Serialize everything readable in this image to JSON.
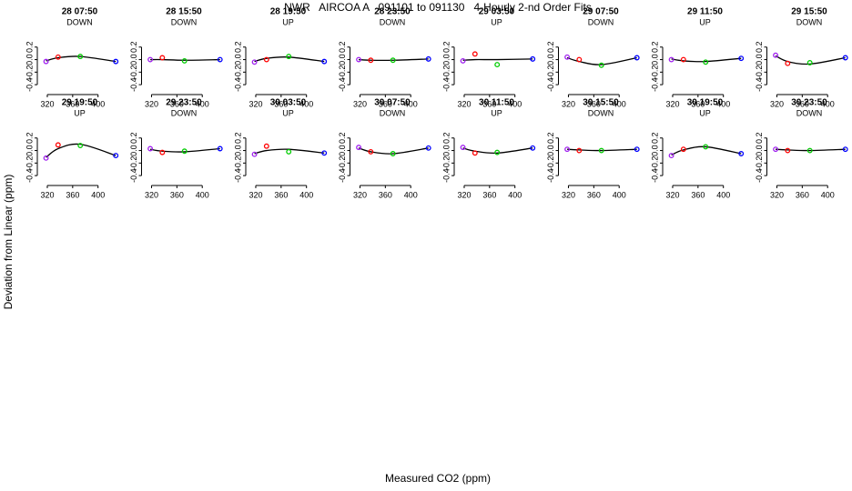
{
  "title": "NWR   AIRCOA A   091101 to 091130   4-Hourly 2-nd Order Fits",
  "xlabel": "Measured CO2 (ppm)",
  "ylabel": "Deviation from Linear (ppm)",
  "chart_data": [
    {
      "type": "scatter",
      "title": "28 07:50",
      "subtitle": "DOWN",
      "xlim": [
        310,
        432
      ],
      "ylim": [
        -0.5,
        0.4
      ],
      "xticks": [
        320,
        360,
        400
      ],
      "yticks": [
        -0.4,
        -0.2,
        {
          "value": 0,
          "label": "0.0"
        },
        0.2
      ],
      "points": {
        "x": [
          318,
          337,
          372,
          428
        ],
        "values": [
          -0.03,
          0.04,
          0.05,
          -0.03
        ],
        "colors": [
          "#a020f0",
          "#ff0000",
          "#00cc00",
          "#0000ff"
        ]
      },
      "fit": {
        "x": [
          318,
          337,
          372,
          428
        ],
        "values": [
          -0.02,
          0.03,
          0.05,
          -0.03
        ],
        "color": "#000000"
      }
    },
    {
      "type": "scatter",
      "title": "28 15:50",
      "subtitle": "DOWN",
      "xlim": [
        310,
        432
      ],
      "ylim": [
        -0.5,
        0.4
      ],
      "xticks": [
        320,
        360,
        400
      ],
      "yticks": [
        -0.4,
        -0.2,
        {
          "value": 0,
          "label": "0.0"
        },
        0.2
      ],
      "points": {
        "x": [
          318,
          337,
          372,
          428
        ],
        "values": [
          0.0,
          0.03,
          -0.02,
          0.0
        ],
        "colors": [
          "#a020f0",
          "#ff0000",
          "#00cc00",
          "#0000ff"
        ]
      },
      "fit": {
        "x": [
          318,
          337,
          372,
          428
        ],
        "values": [
          0.0,
          0.0,
          -0.01,
          0.0
        ],
        "color": "#000000"
      }
    },
    {
      "type": "scatter",
      "title": "28 19:50",
      "subtitle": "UP",
      "xlim": [
        310,
        432
      ],
      "ylim": [
        -0.5,
        0.4
      ],
      "xticks": [
        320,
        360,
        400
      ],
      "yticks": [
        -0.4,
        -0.2,
        {
          "value": 0,
          "label": "0.0"
        },
        0.2
      ],
      "points": {
        "x": [
          318,
          337,
          372,
          428
        ],
        "values": [
          -0.04,
          0.0,
          0.05,
          -0.03
        ],
        "colors": [
          "#a020f0",
          "#ff0000",
          "#00cc00",
          "#0000ff"
        ]
      },
      "fit": {
        "x": [
          318,
          337,
          372,
          428
        ],
        "values": [
          -0.03,
          0.02,
          0.04,
          -0.03
        ],
        "color": "#000000"
      }
    },
    {
      "type": "scatter",
      "title": "28 23:50",
      "subtitle": "DOWN",
      "xlim": [
        310,
        432
      ],
      "ylim": [
        -0.5,
        0.4
      ],
      "xticks": [
        320,
        360,
        400
      ],
      "yticks": [
        -0.4,
        -0.2,
        {
          "value": 0,
          "label": "0.0"
        },
        0.2
      ],
      "points": {
        "x": [
          318,
          337,
          372,
          428
        ],
        "values": [
          0.0,
          -0.01,
          -0.01,
          0.01
        ],
        "colors": [
          "#a020f0",
          "#ff0000",
          "#00cc00",
          "#0000ff"
        ]
      },
      "fit": {
        "x": [
          318,
          337,
          372,
          428
        ],
        "values": [
          0.0,
          -0.01,
          -0.01,
          0.01
        ],
        "color": "#000000"
      }
    },
    {
      "type": "scatter",
      "title": "29 03:50",
      "subtitle": "UP",
      "xlim": [
        310,
        432
      ],
      "ylim": [
        -0.5,
        0.4
      ],
      "xticks": [
        320,
        360,
        400
      ],
      "yticks": [
        -0.4,
        -0.2,
        {
          "value": 0,
          "label": "0.0"
        },
        0.2
      ],
      "points": {
        "x": [
          318,
          337,
          372,
          428
        ],
        "values": [
          -0.02,
          0.09,
          -0.08,
          0.01
        ],
        "colors": [
          "#a020f0",
          "#ff0000",
          "#00cc00",
          "#0000ff"
        ]
      },
      "fit": {
        "x": [
          318,
          337,
          372,
          428
        ],
        "values": [
          -0.01,
          0.0,
          0.0,
          0.01
        ],
        "color": "#000000"
      }
    },
    {
      "type": "scatter",
      "title": "29 07:50",
      "subtitle": "DOWN",
      "xlim": [
        310,
        432
      ],
      "ylim": [
        -0.5,
        0.4
      ],
      "xticks": [
        320,
        360,
        400
      ],
      "yticks": [
        -0.4,
        -0.2,
        {
          "value": 0,
          "label": "0.0"
        },
        0.2
      ],
      "points": {
        "x": [
          318,
          337,
          372,
          428
        ],
        "values": [
          0.04,
          0.0,
          -0.09,
          0.03
        ],
        "colors": [
          "#a020f0",
          "#ff0000",
          "#00cc00",
          "#0000ff"
        ]
      },
      "fit": {
        "x": [
          318,
          337,
          372,
          428
        ],
        "values": [
          0.03,
          -0.03,
          -0.08,
          0.03
        ],
        "color": "#000000"
      }
    },
    {
      "type": "scatter",
      "title": "29 11:50",
      "subtitle": "UP",
      "xlim": [
        310,
        432
      ],
      "ylim": [
        -0.5,
        0.4
      ],
      "xticks": [
        320,
        360,
        400
      ],
      "yticks": [
        -0.4,
        -0.2,
        {
          "value": 0,
          "label": "0.0"
        },
        0.2
      ],
      "points": {
        "x": [
          318,
          337,
          372,
          428
        ],
        "values": [
          0.0,
          0.0,
          -0.04,
          0.02
        ],
        "colors": [
          "#a020f0",
          "#ff0000",
          "#00cc00",
          "#0000ff"
        ]
      },
      "fit": {
        "x": [
          318,
          337,
          372,
          428
        ],
        "values": [
          0.01,
          -0.02,
          -0.03,
          0.02
        ],
        "color": "#000000"
      }
    },
    {
      "type": "scatter",
      "title": "29 15:50",
      "subtitle": "DOWN",
      "xlim": [
        310,
        432
      ],
      "ylim": [
        -0.5,
        0.4
      ],
      "xticks": [
        320,
        360,
        400
      ],
      "yticks": [
        -0.4,
        -0.2,
        {
          "value": 0,
          "label": "0.0"
        },
        0.2
      ],
      "points": {
        "x": [
          318,
          337,
          372,
          428
        ],
        "values": [
          0.07,
          -0.06,
          -0.05,
          0.03
        ],
        "colors": [
          "#a020f0",
          "#ff0000",
          "#00cc00",
          "#0000ff"
        ]
      },
      "fit": {
        "x": [
          318,
          337,
          372,
          428
        ],
        "values": [
          0.06,
          -0.03,
          -0.07,
          0.03
        ],
        "color": "#000000"
      }
    },
    {
      "type": "scatter",
      "title": "29 19:50",
      "subtitle": "UP",
      "xlim": [
        310,
        432
      ],
      "ylim": [
        -0.5,
        0.4
      ],
      "xticks": [
        320,
        360,
        400
      ],
      "yticks": [
        -0.4,
        -0.2,
        {
          "value": 0,
          "label": "0.0"
        },
        0.2
      ],
      "points": {
        "x": [
          318,
          337,
          372,
          428
        ],
        "values": [
          -0.12,
          0.09,
          0.08,
          -0.08
        ],
        "colors": [
          "#a020f0",
          "#ff0000",
          "#00cc00",
          "#0000ff"
        ]
      },
      "fit": {
        "x": [
          318,
          337,
          372,
          428
        ],
        "values": [
          -0.11,
          0.03,
          0.1,
          -0.08
        ],
        "color": "#000000"
      }
    },
    {
      "type": "scatter",
      "title": "29 23:50",
      "subtitle": "DOWN",
      "xlim": [
        310,
        432
      ],
      "ylim": [
        -0.5,
        0.4
      ],
      "xticks": [
        320,
        360,
        400
      ],
      "yticks": [
        -0.4,
        -0.2,
        {
          "value": 0,
          "label": "0.0"
        },
        0.2
      ],
      "points": {
        "x": [
          318,
          337,
          372,
          428
        ],
        "values": [
          0.03,
          -0.03,
          -0.01,
          0.03
        ],
        "colors": [
          "#a020f0",
          "#ff0000",
          "#00cc00",
          "#0000ff"
        ]
      },
      "fit": {
        "x": [
          318,
          337,
          372,
          428
        ],
        "values": [
          0.02,
          -0.01,
          -0.02,
          0.03
        ],
        "color": "#000000"
      }
    },
    {
      "type": "scatter",
      "title": "30 03:50",
      "subtitle": "UP",
      "xlim": [
        310,
        432
      ],
      "ylim": [
        -0.5,
        0.4
      ],
      "xticks": [
        320,
        360,
        400
      ],
      "yticks": [
        -0.4,
        -0.2,
        {
          "value": 0,
          "label": "0.0"
        },
        0.2
      ],
      "points": {
        "x": [
          318,
          337,
          372,
          428
        ],
        "values": [
          -0.06,
          0.07,
          -0.02,
          -0.04
        ],
        "colors": [
          "#a020f0",
          "#ff0000",
          "#00cc00",
          "#0000ff"
        ]
      },
      "fit": {
        "x": [
          318,
          337,
          372,
          428
        ],
        "values": [
          -0.05,
          0.0,
          0.02,
          -0.04
        ],
        "color": "#000000"
      }
    },
    {
      "type": "scatter",
      "title": "30 07:50",
      "subtitle": "DOWN",
      "xlim": [
        310,
        432
      ],
      "ylim": [
        -0.5,
        0.4
      ],
      "xticks": [
        320,
        360,
        400
      ],
      "yticks": [
        -0.4,
        -0.2,
        {
          "value": 0,
          "label": "0.0"
        },
        0.2
      ],
      "points": {
        "x": [
          318,
          337,
          372,
          428
        ],
        "values": [
          0.05,
          -0.02,
          -0.05,
          0.04
        ],
        "colors": [
          "#a020f0",
          "#ff0000",
          "#00cc00",
          "#0000ff"
        ]
      },
      "fit": {
        "x": [
          318,
          337,
          372,
          428
        ],
        "values": [
          0.04,
          -0.02,
          -0.05,
          0.04
        ],
        "color": "#000000"
      }
    },
    {
      "type": "scatter",
      "title": "30 11:50",
      "subtitle": "UP",
      "xlim": [
        310,
        432
      ],
      "ylim": [
        -0.5,
        0.4
      ],
      "xticks": [
        320,
        360,
        400
      ],
      "yticks": [
        -0.4,
        -0.2,
        {
          "value": 0,
          "label": "0.0"
        },
        0.2
      ],
      "points": {
        "x": [
          318,
          337,
          372,
          428
        ],
        "values": [
          0.05,
          -0.04,
          -0.03,
          0.04
        ],
        "colors": [
          "#a020f0",
          "#ff0000",
          "#00cc00",
          "#0000ff"
        ]
      },
      "fit": {
        "x": [
          318,
          337,
          372,
          428
        ],
        "values": [
          0.04,
          -0.01,
          -0.04,
          0.04
        ],
        "color": "#000000"
      }
    },
    {
      "type": "scatter",
      "title": "30 15:50",
      "subtitle": "DOWN",
      "xlim": [
        310,
        432
      ],
      "ylim": [
        -0.5,
        0.4
      ],
      "xticks": [
        320,
        360,
        400
      ],
      "yticks": [
        -0.4,
        -0.2,
        {
          "value": 0,
          "label": "0.0"
        },
        0.2
      ],
      "points": {
        "x": [
          318,
          337,
          372,
          428
        ],
        "values": [
          0.02,
          0.0,
          0.0,
          0.02
        ],
        "colors": [
          "#a020f0",
          "#ff0000",
          "#00cc00",
          "#0000ff"
        ]
      },
      "fit": {
        "x": [
          318,
          337,
          372,
          428
        ],
        "values": [
          0.02,
          0.01,
          0.0,
          0.02
        ],
        "color": "#000000"
      }
    },
    {
      "type": "scatter",
      "title": "30 19:50",
      "subtitle": "UP",
      "xlim": [
        310,
        432
      ],
      "ylim": [
        -0.5,
        0.4
      ],
      "xticks": [
        320,
        360,
        400
      ],
      "yticks": [
        -0.4,
        -0.2,
        {
          "value": 0,
          "label": "0.0"
        },
        0.2
      ],
      "points": {
        "x": [
          318,
          337,
          372,
          428
        ],
        "values": [
          -0.08,
          0.02,
          0.06,
          -0.05
        ],
        "colors": [
          "#a020f0",
          "#ff0000",
          "#00cc00",
          "#0000ff"
        ]
      },
      "fit": {
        "x": [
          318,
          337,
          372,
          428
        ],
        "values": [
          -0.07,
          0.01,
          0.06,
          -0.05
        ],
        "color": "#000000"
      }
    },
    {
      "type": "scatter",
      "title": "30 23:50",
      "subtitle": "DOWN",
      "xlim": [
        310,
        432
      ],
      "ylim": [
        -0.5,
        0.4
      ],
      "xticks": [
        320,
        360,
        400
      ],
      "yticks": [
        -0.4,
        -0.2,
        {
          "value": 0,
          "label": "0.0"
        },
        0.2
      ],
      "points": {
        "x": [
          318,
          337,
          372,
          428
        ],
        "values": [
          0.02,
          0.0,
          0.0,
          0.02
        ],
        "colors": [
          "#a020f0",
          "#ff0000",
          "#00cc00",
          "#0000ff"
        ]
      },
      "fit": {
        "x": [
          318,
          337,
          372,
          428
        ],
        "values": [
          0.02,
          0.01,
          0.0,
          0.02
        ],
        "color": "#000000"
      }
    }
  ]
}
